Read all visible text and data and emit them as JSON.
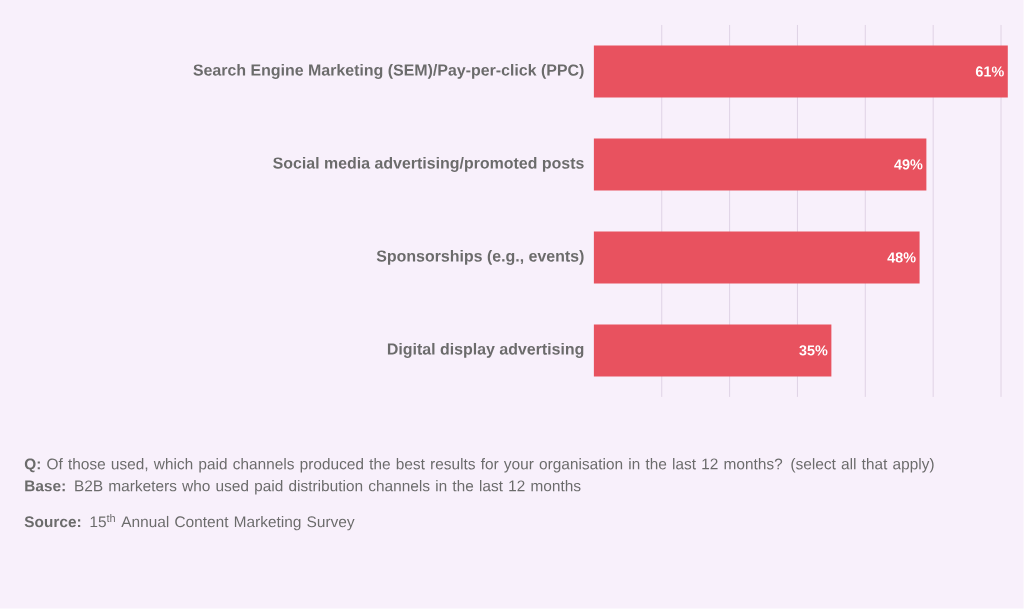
{
  "chart_data": {
    "type": "bar",
    "orientation": "horizontal",
    "categories": [
      "Search Engine Marketing (SEM)/Pay-per-click (PPC)",
      "Social media advertising/promoted posts",
      "Sponsorships (e.g., events)",
      "Digital display advertising"
    ],
    "values": [
      61,
      49,
      48,
      35
    ],
    "value_labels": [
      "61%",
      "49%",
      "48%",
      "35%"
    ],
    "color": "#e8525f",
    "xlim": [
      0,
      61
    ],
    "xticks": [
      {
        "value": 10,
        "label": null
      },
      {
        "value": 20,
        "label": null
      },
      {
        "value": 30,
        "label": null
      },
      {
        "value": 40,
        "label": null
      },
      {
        "value": 50,
        "label": null
      },
      {
        "value": 60,
        "label": null
      }
    ],
    "grid": "x",
    "tick_labels": "y",
    "annotations": [
      "**Q:** Of those used, which paid channels produced the best results for your organisation in the last 12 months? (select all that apply)",
      "**Base:** B2B marketers who used paid distribution channels in the last 12 months",
      "**Source:** 15$^{th}$ Annual Content Marketing Survey"
    ]
  }
}
